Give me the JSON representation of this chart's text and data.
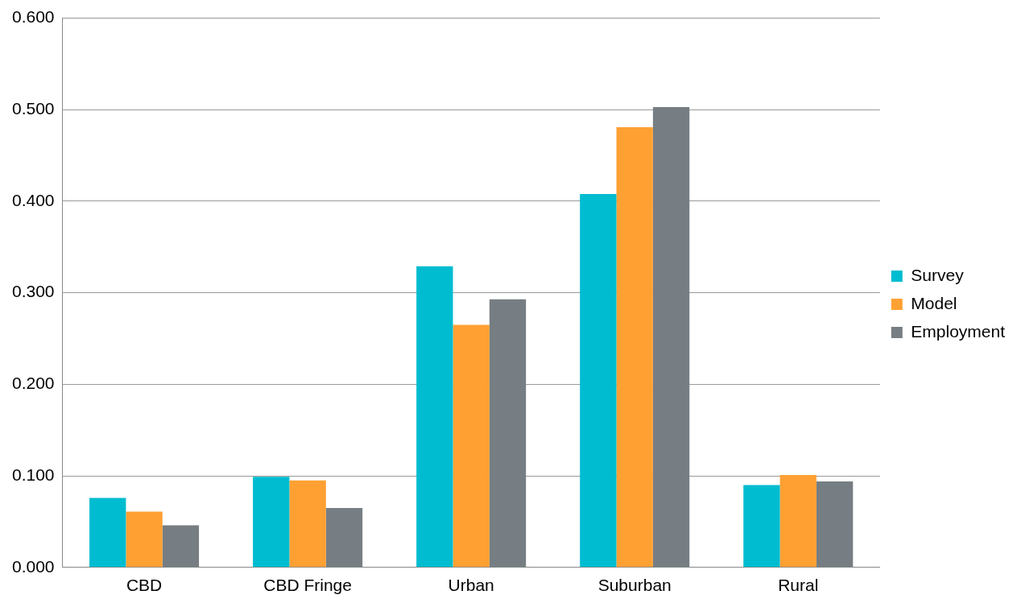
{
  "chart_data": {
    "type": "bar",
    "categories": [
      "CBD",
      "CBD Fringe",
      "Urban",
      "Suburban",
      "Rural"
    ],
    "series": [
      {
        "name": "Survey",
        "color": "#00bcd0",
        "values": [
          0.076,
          0.099,
          0.329,
          0.408,
          0.09
        ]
      },
      {
        "name": "Model",
        "color": "#ffa033",
        "values": [
          0.061,
          0.095,
          0.265,
          0.481,
          0.101
        ]
      },
      {
        "name": "Employment",
        "color": "#767e83",
        "values": [
          0.046,
          0.065,
          0.293,
          0.503,
          0.094
        ]
      }
    ],
    "ylim": [
      0,
      0.6
    ],
    "yticks": [
      {
        "value": 0,
        "label": "0.000"
      },
      {
        "value": 0.1,
        "label": "0.100"
      },
      {
        "value": 0.2,
        "label": "0.200"
      },
      {
        "value": 0.3,
        "label": "0.300"
      },
      {
        "value": 0.4,
        "label": "0.400"
      },
      {
        "value": 0.5,
        "label": "0.500"
      },
      {
        "value": 0.6,
        "label": "0.600"
      }
    ],
    "grid": "y",
    "legend": "right"
  }
}
